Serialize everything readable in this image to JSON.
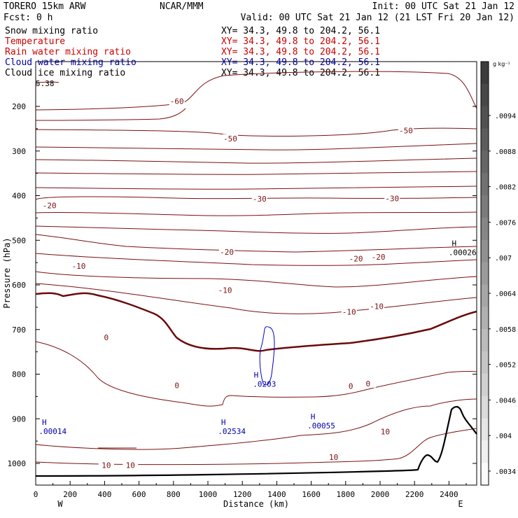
{
  "header": {
    "model": "TORERO  15km ARW",
    "center": "NCAR/MMM",
    "init": "Init: 00 UTC Sat 21 Jan 12",
    "fcst": "Fcst:    0 h",
    "valid": "Valid: 00 UTC Sat 21 Jan 12 (21 LST Fri 20 Jan 12)"
  },
  "legend": [
    {
      "name": "Snow mixing ratio",
      "xy": "XY=  34.3, 49.8 to 204.2, 56.1",
      "color": "#000000",
      "xycolor": "#000000"
    },
    {
      "name": "Temperature",
      "xy": "XY=  34.3, 49.8 to 204.2, 56.1",
      "color": "#cc0000",
      "xycolor": "#cc0000"
    },
    {
      "name": "Rain water mixing ratio",
      "xy": "XY=  34.3, 49.8 to 204.2, 56.1",
      "color": "#cc0000",
      "xycolor": "#cc0000"
    },
    {
      "name": "Cloud water mixing ratio",
      "xy": "XY=  34.3, 49.8 to 204.2, 56.1",
      "color": "#0000aa",
      "xycolor": "#0000aa"
    },
    {
      "name": "Cloud ice mixing ratio",
      "xy": "XY=  34.3, 49.8 to 204.2, 56.1",
      "color": "#000000",
      "xycolor": "#000000"
    }
  ],
  "colorbar": {
    "unit": "g kg⁻¹",
    "ticks": [
      ".0094",
      ".0088",
      ".0082",
      ".0076",
      ".007",
      ".0064",
      ".0058",
      ".0052",
      ".0046",
      ".004",
      ".0034"
    ]
  },
  "chart_data": {
    "type": "contour",
    "xlabel": "Distance (km)",
    "ylabel": "Pressure (hPa)",
    "xlim": [
      0,
      2550
    ],
    "ylim": [
      1050,
      100
    ],
    "x_ticks": [
      0,
      200,
      400,
      600,
      800,
      1000,
      1200,
      1400,
      1600,
      1800,
      2000,
      2200,
      2400
    ],
    "y_ticks": [
      200,
      300,
      400,
      500,
      600,
      700,
      800,
      900,
      1000
    ],
    "x_end_labels": {
      "left": "W",
      "right": "E"
    },
    "temperature_contour_labels": [
      {
        "text": "-60",
        "x": 820,
        "y": 188
      },
      {
        "text": "-50",
        "x": 1130,
        "y": 272
      },
      {
        "text": "-50",
        "x": 2150,
        "y": 254
      },
      {
        "text": "-30",
        "x": 1300,
        "y": 407
      },
      {
        "text": "-30",
        "x": 2070,
        "y": 406
      },
      {
        "text": "-20",
        "x": 80,
        "y": 422
      },
      {
        "text": "-20",
        "x": 1110,
        "y": 526
      },
      {
        "text": "-20",
        "x": 1860,
        "y": 541
      },
      {
        "text": "-20",
        "x": 1990,
        "y": 537
      },
      {
        "text": "-10",
        "x": 250,
        "y": 558
      },
      {
        "text": "-10",
        "x": 1100,
        "y": 612
      },
      {
        "text": "-10",
        "x": 1820,
        "y": 660
      },
      {
        "text": "-10",
        "x": 1980,
        "y": 648
      },
      {
        "text": "0",
        "x": 410,
        "y": 718
      },
      {
        "text": "0",
        "x": 820,
        "y": 825
      },
      {
        "text": "0",
        "x": 1830,
        "y": 827
      },
      {
        "text": "0",
        "x": 1930,
        "y": 821
      },
      {
        "text": "10",
        "x": 410,
        "y": 1004
      },
      {
        "text": "10",
        "x": 550,
        "y": 1004
      },
      {
        "text": "10",
        "x": 1730,
        "y": 986
      },
      {
        "text": "10",
        "x": 2030,
        "y": 929
      }
    ],
    "extrema": [
      {
        "label": "H",
        "value": ".0203",
        "x": 1280,
        "y": 808,
        "color": "#0000aa"
      },
      {
        "label": "H",
        "value": ".00014",
        "x": 50,
        "y": 914,
        "color": "#0000aa"
      },
      {
        "label": "H",
        "value": ".02534",
        "x": 1090,
        "y": 914,
        "color": "#0000aa"
      },
      {
        "label": "H",
        "value": ".00055",
        "x": 1610,
        "y": 901,
        "color": "#0000aa"
      },
      {
        "label": "H",
        "value": ".00026",
        "x": 2430,
        "y": 513,
        "color": "#000000"
      }
    ],
    "corner_label": {
      "text": "5.38",
      "x": 60,
      "y": 155
    }
  }
}
